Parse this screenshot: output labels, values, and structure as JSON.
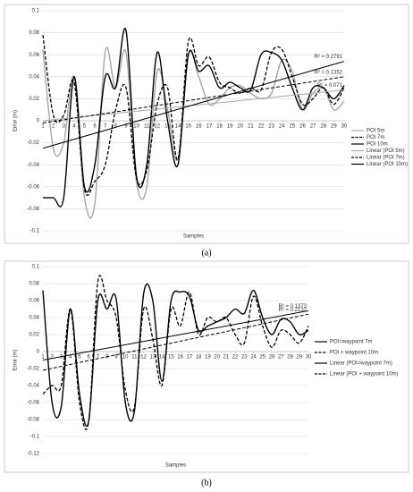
{
  "chart_data": [
    {
      "type": "line",
      "caption": "(a)",
      "x_label": "Samples",
      "y_label": "Error (m)",
      "ylim": [
        -0.1,
        0.1
      ],
      "yticks": [
        -0.1,
        -0.08,
        -0.06,
        -0.04,
        -0.02,
        0,
        0.02,
        0.04,
        0.06,
        0.08,
        0.1
      ],
      "xlim": [
        1,
        30
      ],
      "xticks": [
        1,
        2,
        3,
        4,
        5,
        6,
        7,
        8,
        9,
        10,
        11,
        12,
        13,
        14,
        15,
        16,
        17,
        18,
        19,
        20,
        21,
        22,
        23,
        24,
        25,
        26,
        27,
        28,
        29,
        30
      ],
      "grid": true,
      "legend": "right",
      "series": [
        {
          "name": "POI 5m",
          "color": "#a6a6a6",
          "dash": false,
          "x": [
            1,
            2,
            3,
            4,
            5,
            6,
            7,
            8,
            9,
            10,
            11,
            12,
            13,
            14,
            15,
            16,
            17,
            18,
            19,
            20,
            21,
            22,
            23,
            24,
            25,
            26,
            27,
            28,
            29,
            30
          ],
          "values": [
            0.065,
            -0.025,
            -0.02,
            0.04,
            -0.07,
            -0.075,
            0.063,
            0.03,
            0.062,
            -0.055,
            -0.06,
            0.045,
            0.01,
            -0.035,
            0.06,
            0.04,
            0.015,
            0.02,
            0.03,
            0.032,
            0.025,
            0.02,
            0.025,
            0.055,
            0.045,
            0.01,
            0.025,
            0.03,
            0.01,
            0.018
          ]
        },
        {
          "name": "POI 7m",
          "color": "#000000",
          "dash": true,
          "x": [
            1,
            2,
            3,
            4,
            5,
            6,
            7,
            8,
            9,
            10,
            11,
            12,
            13,
            14,
            15,
            16,
            17,
            18,
            19,
            20,
            21,
            22,
            23,
            24,
            25,
            26,
            27,
            28,
            29,
            30
          ],
          "values": [
            0.078,
            0.005,
            0.005,
            0.035,
            -0.062,
            -0.055,
            -0.04,
            0.01,
            0.03,
            -0.052,
            -0.045,
            0.015,
            0.03,
            -0.035,
            0.072,
            0.05,
            0.058,
            0.035,
            0.03,
            0.025,
            0.03,
            0.028,
            0.062,
            0.065,
            0.04,
            0.015,
            0.02,
            0.03,
            0.015,
            0.03
          ]
        },
        {
          "name": "POI 10m",
          "color": "#000000",
          "dash": false,
          "x": [
            1,
            2,
            3,
            4,
            5,
            6,
            7,
            8,
            9,
            10,
            11,
            12,
            13,
            14,
            15,
            16,
            17,
            18,
            19,
            20,
            21,
            22,
            23,
            24,
            25,
            26,
            27,
            28,
            29,
            30
          ],
          "values": [
            -0.07,
            -0.07,
            -0.07,
            0.04,
            -0.06,
            -0.04,
            0.04,
            0.03,
            0.082,
            -0.05,
            -0.04,
            0.062,
            0,
            -0.04,
            0.06,
            0.045,
            0.05,
            0.03,
            0.035,
            0.03,
            0.028,
            0.06,
            0.062,
            0.055,
            0.03,
            0.01,
            0.03,
            0.03,
            0.02,
            0.032
          ]
        },
        {
          "name": "Linear (POI 5m)",
          "color": "#a6a6a6",
          "dash": false,
          "label": "R² = 0.071",
          "x": [
            1,
            30
          ],
          "values": [
            0.0,
            0.028
          ]
        },
        {
          "name": "Linear (POI 7m)",
          "color": "#000000",
          "dash": true,
          "label": "R² = 0.1352",
          "x": [
            1,
            30
          ],
          "values": [
            -0.002,
            0.04
          ]
        },
        {
          "name": "Linear (POI 10m)",
          "color": "#000000",
          "dash": false,
          "label": "R² = 0.2791",
          "x": [
            1,
            30
          ],
          "values": [
            -0.025,
            0.054
          ]
        }
      ]
    },
    {
      "type": "line",
      "caption": "(b)",
      "x_label": "Samples",
      "y_label": "Error (m)",
      "ylim": [
        -0.12,
        0.1
      ],
      "yticks": [
        -0.12,
        -0.1,
        -0.08,
        -0.06,
        -0.04,
        -0.02,
        0,
        0.02,
        0.04,
        0.06,
        0.08,
        0.1
      ],
      "xlim": [
        1,
        30
      ],
      "xticks": [
        1,
        2,
        3,
        4,
        5,
        6,
        7,
        8,
        9,
        10,
        11,
        12,
        13,
        14,
        15,
        16,
        17,
        18,
        19,
        20,
        21,
        22,
        23,
        24,
        25,
        26,
        27,
        28,
        29,
        30
      ],
      "grid": true,
      "legend": "right",
      "series": [
        {
          "name": "POI=waypoint 7m",
          "color": "#000000",
          "dash": false,
          "x": [
            1,
            2,
            3,
            4,
            5,
            6,
            7,
            8,
            9,
            10,
            11,
            12,
            13,
            14,
            15,
            16,
            17,
            18,
            19,
            20,
            21,
            22,
            23,
            24,
            25,
            26,
            27,
            28,
            29,
            30
          ],
          "values": [
            0.072,
            -0.06,
            -0.065,
            0.05,
            -0.05,
            -0.082,
            0.06,
            0.05,
            0.062,
            -0.06,
            -0.07,
            0.068,
            0.06,
            -0.035,
            0.06,
            0.07,
            0.065,
            0.025,
            0.03,
            0.035,
            0.04,
            0.05,
            0.045,
            0.072,
            0.04,
            0.02,
            0.038,
            0.035,
            0.02,
            0.025
          ]
        },
        {
          "name": "POI + waypoint 10m",
          "color": "#000000",
          "dash": true,
          "x": [
            1,
            2,
            3,
            4,
            5,
            6,
            7,
            8,
            9,
            10,
            11,
            12,
            13,
            14,
            15,
            16,
            17,
            18,
            19,
            20,
            21,
            22,
            23,
            24,
            25,
            26,
            27,
            28,
            29,
            30
          ],
          "values": [
            -0.05,
            -0.04,
            -0.04,
            0.05,
            -0.06,
            -0.082,
            0.082,
            0.06,
            0.04,
            -0.045,
            -0.065,
            0.05,
            0.015,
            -0.04,
            0.05,
            0.03,
            0.07,
            0.02,
            0.04,
            0.035,
            0.04,
            0.02,
            0.01,
            0.065,
            0.03,
            0.005,
            0.025,
            0.02,
            0.01,
            0.03
          ]
        },
        {
          "name": "Linear (POI=waypoint 7m)",
          "color": "#000000",
          "dash": false,
          "label": "R² = 0.1373",
          "x": [
            1,
            30
          ],
          "values": [
            -0.01,
            0.048
          ]
        },
        {
          "name": "Linear (POI + waypoint 10m)",
          "color": "#000000",
          "dash": true,
          "label": "R² = 0.2132",
          "x": [
            1,
            30
          ],
          "values": [
            -0.022,
            0.044
          ]
        }
      ]
    }
  ]
}
